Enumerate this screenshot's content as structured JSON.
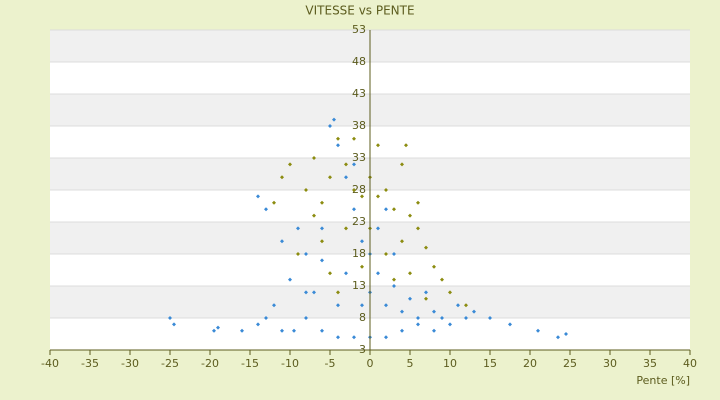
{
  "chart_data": {
    "type": "scatter",
    "title": "VITESSE vs PENTE",
    "x_label": "Pente [%]",
    "xlim": [
      -40,
      40
    ],
    "xticks": [
      -40,
      -35,
      -30,
      -25,
      -20,
      -15,
      -10,
      -5,
      0,
      5,
      10,
      15,
      20,
      25,
      30,
      35,
      40
    ],
    "ylim": [
      3,
      53
    ],
    "yticks": [
      3,
      8,
      13,
      18,
      23,
      28,
      33,
      38,
      43,
      48,
      53
    ],
    "grid": true,
    "series": [
      {
        "color": "#8c8c10",
        "x": [
          -11,
          -10,
          -8,
          -7,
          -6,
          -5,
          -4,
          -3,
          -2,
          -1,
          0,
          1,
          2,
          3,
          4,
          4.5,
          5,
          6,
          7,
          8,
          9,
          10,
          12,
          -6,
          -9,
          -3,
          -1,
          2,
          4,
          5,
          -12,
          1,
          -2,
          6,
          -7,
          3,
          7,
          -4,
          0,
          -5
        ],
        "values": [
          30,
          32,
          28,
          33,
          26,
          30,
          36,
          32,
          28,
          27,
          30,
          27,
          28,
          25,
          32,
          35,
          24,
          22,
          19,
          16,
          14,
          12,
          10,
          20,
          18,
          22,
          16,
          18,
          20,
          15,
          26,
          35,
          36,
          26,
          24,
          14,
          11,
          12,
          22,
          15
        ]
      },
      {
        "color": "#3a8ad6",
        "x": [
          -25,
          -24.5,
          -19.5,
          -19,
          -16,
          -14,
          -13,
          -11,
          -9.5,
          -8,
          -6,
          -4,
          -2,
          0,
          2,
          4,
          6,
          8,
          10,
          12,
          15,
          17.5,
          21,
          23.5,
          24.5,
          -14,
          -13,
          -11,
          -10,
          -8,
          -7,
          -6,
          -5,
          -4.5,
          -4,
          -3,
          -2,
          -1,
          0,
          0,
          1,
          2,
          3,
          4,
          5,
          6,
          7,
          8,
          9,
          11,
          13,
          -3,
          -1,
          1,
          -6,
          -8,
          -12,
          3,
          2,
          -2,
          -9,
          -4
        ],
        "values": [
          8,
          7,
          6,
          6.5,
          6,
          7,
          8,
          6,
          6,
          8,
          6,
          5,
          5,
          5,
          5,
          6,
          7,
          6,
          7,
          8,
          8,
          7,
          6,
          5,
          5.5,
          27,
          25,
          20,
          14,
          18,
          12,
          22,
          38,
          39,
          35,
          30,
          25,
          20,
          18,
          12,
          15,
          10,
          13,
          9,
          11,
          8,
          12,
          9,
          8,
          10,
          9,
          15,
          10,
          22,
          17,
          12,
          10,
          18,
          25,
          32,
          22,
          10
        ]
      }
    ]
  }
}
